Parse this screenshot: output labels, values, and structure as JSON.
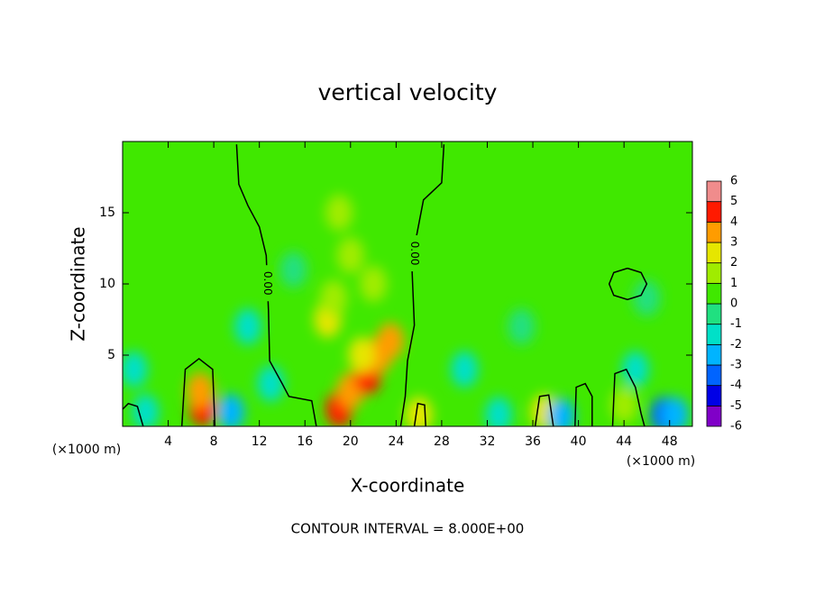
{
  "chart_data": {
    "type": "contour",
    "title": "vertical velocity",
    "xlabel": "X-coordinate",
    "ylabel": "Z-coordinate",
    "x_unit": "(×1000 m)",
    "footer": "CONTOUR INTERVAL = 8.000E+00",
    "xlim": [
      0,
      50
    ],
    "ylim": [
      0,
      20
    ],
    "xticks": [
      4,
      8,
      12,
      16,
      20,
      24,
      28,
      32,
      36,
      40,
      44,
      48
    ],
    "yticks": [
      5,
      10,
      15
    ],
    "colorbar": {
      "ticks": [
        -6,
        -5,
        -4,
        -3,
        -2,
        -1,
        0,
        1,
        2,
        3,
        4,
        5,
        6
      ],
      "colors": [
        "#8000c8",
        "#0000e6",
        "#0064ff",
        "#00b4ff",
        "#00e0c8",
        "#20e080",
        "#40e800",
        "#a0ec00",
        "#e6e600",
        "#ff9c00",
        "#ff1a00",
        "#f08c8c"
      ]
    },
    "field": {
      "x": [
        7,
        6.8,
        9.5,
        19,
        20,
        21.5,
        22.5,
        23.5,
        21,
        18,
        18.5,
        20,
        19,
        22,
        26,
        37,
        38.5,
        47.5,
        48.5,
        44,
        2,
        1,
        13,
        30,
        33,
        45,
        11,
        15,
        35,
        46
      ],
      "z": [
        1.3,
        2.5,
        1,
        1.2,
        2.5,
        3.5,
        5,
        6,
        5,
        7.5,
        9,
        12,
        15,
        10,
        0.8,
        1,
        0.7,
        0.8,
        0.8,
        1.5,
        1,
        4,
        3,
        4,
        0.8,
        4,
        7,
        11,
        7,
        9
      ],
      "values": [
        4.5,
        3,
        -2.5,
        4.5,
        3.5,
        4,
        3.5,
        3,
        2.5,
        2,
        1.5,
        1.5,
        1.2,
        1.5,
        2.5,
        2.5,
        -3,
        -3.5,
        -2.5,
        1.5,
        -1.5,
        -1.2,
        -1.3,
        -1.3,
        -1.5,
        -1.1,
        -1.1,
        -1,
        -1,
        -1
      ]
    },
    "contour": {
      "value": 0,
      "label": "0.00",
      "lines": [
        {
          "x": [
            10,
            10.2,
            11,
            12,
            12.6,
            12.8,
            12.9,
            14,
            14.6,
            16.6,
            17
          ],
          "z": [
            19.8,
            17,
            15.5,
            14,
            12,
            8.1,
            4.6,
            3,
            2.1,
            1.8,
            0
          ]
        },
        {
          "x": [
            28.2,
            28,
            26.4,
            25.8,
            25.4,
            25.6,
            25,
            24.8,
            24.4
          ],
          "z": [
            19.8,
            17.1,
            15.9,
            13.4,
            10.9,
            7.1,
            4.6,
            2.1,
            0
          ]
        },
        {
          "x": [
            44.3,
            45.5,
            46,
            45.5,
            44.3,
            43.1,
            42.7,
            43.1,
            44.3
          ],
          "z": [
            11.1,
            10.8,
            10,
            9.2,
            8.9,
            9.2,
            10,
            10.8,
            11.1
          ]
        },
        {
          "x": [
            5.2,
            5.5,
            6.7,
            7.9,
            8.1
          ],
          "z": [
            0,
            4,
            4.75,
            4,
            0
          ]
        },
        {
          "x": [
            43,
            43.2,
            44.2,
            45,
            45.5,
            45.8
          ],
          "z": [
            0,
            3.7,
            4,
            2.75,
            0.9,
            0
          ]
        },
        {
          "x": [
            39.7,
            39.8,
            40.6,
            41.2,
            41.2
          ],
          "z": [
            0,
            2.75,
            3,
            2.1,
            0
          ]
        },
        {
          "x": [
            36.2,
            36.6,
            37.4,
            37.8
          ],
          "z": [
            0,
            2.1,
            2.2,
            0
          ]
        },
        {
          "x": [
            25.6,
            25.9,
            26.5,
            26.6
          ],
          "z": [
            0,
            1.6,
            1.5,
            0
          ]
        },
        {
          "x": [
            0,
            0.5,
            1.3,
            1.8
          ],
          "z": [
            1.2,
            1.6,
            1.4,
            0
          ]
        }
      ]
    }
  }
}
